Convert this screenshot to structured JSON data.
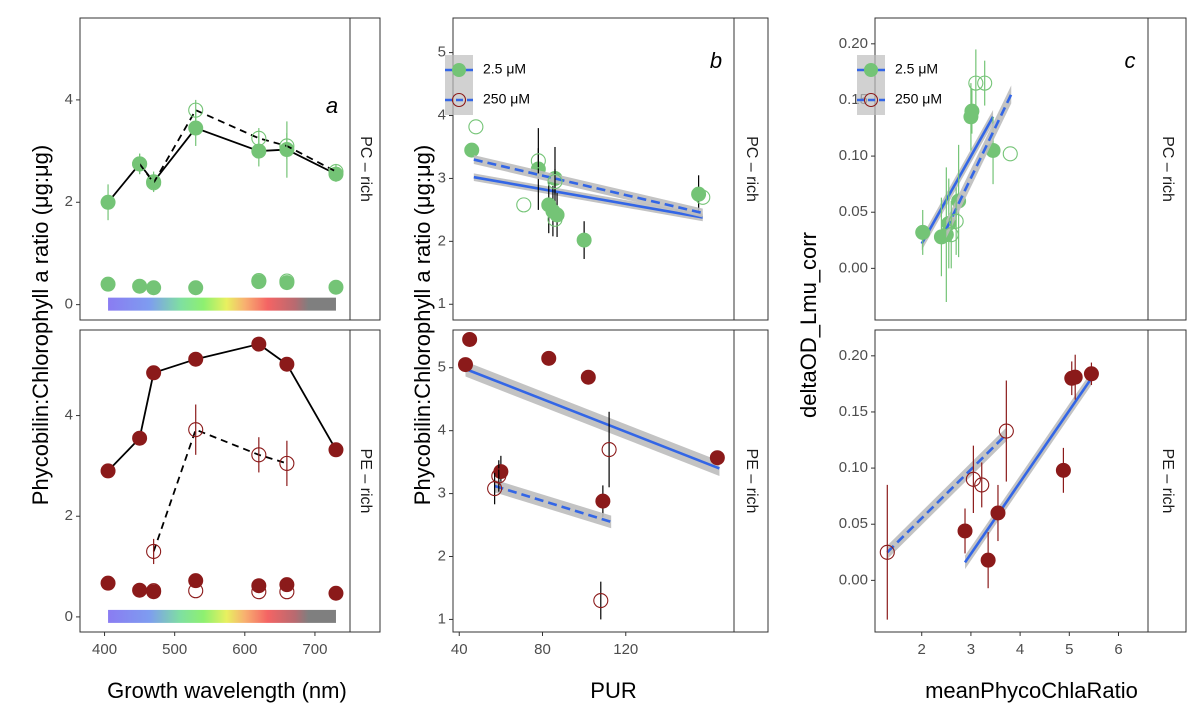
{
  "colors": {
    "pc": "#74c476",
    "pe": "#8b1a1a",
    "fit": "#3366e6",
    "ribbon": "#bdbdbd",
    "frame": "#333333",
    "grid": "#ffffff"
  },
  "legend": {
    "items": [
      {
        "label": "2.5 μM",
        "line": "solid",
        "marker": "filled"
      },
      {
        "label": "250 μM",
        "line": "dashed",
        "marker": "open"
      }
    ]
  },
  "chart_data": [
    {
      "id": "a",
      "type": "line",
      "panel_letter": "a",
      "xlabel": "Growth wavelength (nm)",
      "ylabel": "Phycobilin:Chlorophyll a ratio (μg:μg)",
      "xlim": [
        365,
        750
      ],
      "x_ticks": [
        "400",
        "500",
        "600",
        "700"
      ],
      "x_tick_values": [
        400,
        500,
        600,
        700
      ],
      "facets": [
        {
          "strip": "PC – rich",
          "ylim": [
            -0.3,
            5.6
          ],
          "y_ticks": [
            "0",
            "2",
            "4"
          ],
          "y_tick_values": [
            0,
            2,
            4
          ],
          "spectrum_bar": true,
          "series": [
            {
              "name": "2.5 μM",
              "line": "solid",
              "marker": "filled",
              "color": "pc",
              "x": [
                405,
                450,
                470,
                530,
                620,
                660,
                730
              ],
              "y": [
                2.0,
                2.75,
                2.4,
                3.45,
                3.0,
                3.03,
                2.55
              ],
              "err": [
                0.35,
                0.2,
                0.2,
                0.35,
                0.3,
                0.55,
                0.15
              ]
            },
            {
              "name": "250 μM",
              "line": "dashed",
              "marker": "open",
              "color": "pc",
              "x": [
                450,
                470,
                530,
                620,
                660,
                730
              ],
              "y": [
                2.75,
                2.38,
                3.8,
                3.25,
                3.1,
                2.6
              ],
              "err": [
                0.2,
                0.15,
                0.2,
                0.2,
                0.25,
                0.15
              ]
            },
            {
              "name": "2.5 μM",
              "line": "none",
              "marker": "filled",
              "color": "pc",
              "x": [
                405,
                450,
                470,
                530,
                620,
                660,
                730
              ],
              "y": [
                0.4,
                0.36,
                0.33,
                0.33,
                0.45,
                0.43,
                0.34
              ]
            },
            {
              "name": "250 μM",
              "line": "none",
              "marker": "open",
              "color": "pc",
              "x": [
                620,
                660
              ],
              "y": [
                0.47,
                0.46
              ]
            }
          ]
        },
        {
          "strip": "PE – rich",
          "ylim": [
            -0.3,
            5.7
          ],
          "y_ticks": [
            "0",
            "2",
            "4"
          ],
          "y_tick_values": [
            0,
            2,
            4
          ],
          "spectrum_bar": true,
          "series": [
            {
              "name": "2.5 μM",
              "line": "solid",
              "marker": "filled",
              "color": "pe",
              "x": [
                405,
                450,
                470,
                530,
                620,
                660,
                730
              ],
              "y": [
                2.9,
                3.55,
                4.85,
                5.12,
                5.42,
                5.02,
                3.32
              ],
              "err": [
                0.1,
                0.1,
                0.1,
                0.1,
                0.1,
                0.1,
                0.1
              ]
            },
            {
              "name": "250 μM",
              "line": "dashed",
              "marker": "open",
              "color": "pe",
              "x": [
                470,
                530,
                620,
                660
              ],
              "y": [
                1.3,
                3.72,
                3.22,
                3.05
              ],
              "err": [
                0.25,
                0.5,
                0.35,
                0.45
              ]
            },
            {
              "name": "2.5 μM",
              "line": "none",
              "marker": "filled",
              "color": "pe",
              "x": [
                405,
                450,
                470,
                530,
                620,
                660,
                730
              ],
              "y": [
                0.67,
                0.53,
                0.5,
                0.72,
                0.62,
                0.64,
                0.47
              ]
            },
            {
              "name": "250 μM",
              "line": "none",
              "marker": "open",
              "color": "pe",
              "x": [
                470,
                530,
                620,
                660
              ],
              "y": [
                0.52,
                0.52,
                0.5,
                0.5
              ]
            }
          ]
        }
      ]
    },
    {
      "id": "b",
      "type": "scatter",
      "panel_letter": "b",
      "xlabel": "PUR",
      "ylabel": "Phycobilin:Chlorophyll a ratio (μg:μg)",
      "xlim": [
        37,
        172
      ],
      "x_ticks": [
        "40",
        "80",
        "120"
      ],
      "x_tick_values": [
        40,
        80,
        120
      ],
      "facets": [
        {
          "strip": "PC – rich",
          "ylim": [
            0.75,
            5.55
          ],
          "y_ticks": [
            "1",
            "2",
            "3",
            "4",
            "5"
          ],
          "y_tick_values": [
            1,
            2,
            3,
            4,
            5
          ],
          "series": [
            {
              "name": "2.5 μM",
              "marker": "filled",
              "color": "pc",
              "x": [
                46,
                78,
                83,
                86,
                85,
                87,
                100,
                155
              ],
              "y": [
                3.45,
                3.15,
                2.58,
                3.0,
                2.48,
                2.42,
                2.02,
                2.75
              ],
              "err": [
                0,
                0.65,
                0.45,
                0.5,
                0.4,
                0.35,
                0.3,
                0.3
              ],
              "fit": {
                "x": [
                  47,
                  157
                ],
                "y": [
                  3.02,
                  2.38
                ],
                "band": 0.06
              }
            },
            {
              "name": "250 μM",
              "marker": "open",
              "color": "pc",
              "x": [
                48,
                71,
                78,
                86,
                86,
                157
              ],
              "y": [
                3.82,
                2.58,
                3.28,
                2.35,
                2.95,
                2.7
              ],
              "err": [
                0,
                0,
                0.2,
                0,
                0.2,
                0
              ],
              "fit": {
                "x": [
                  47,
                  157
                ],
                "y": [
                  3.3,
                  2.45
                ],
                "band": 0.07
              }
            }
          ]
        },
        {
          "strip": "PE – rich",
          "ylim": [
            0.8,
            5.6
          ],
          "y_ticks": [
            "1",
            "2",
            "3",
            "4",
            "5"
          ],
          "y_tick_values": [
            1,
            2,
            3,
            4,
            5
          ],
          "series": [
            {
              "name": "2.5 μM",
              "marker": "filled",
              "color": "pe",
              "x": [
                43,
                45,
                60,
                83,
                102,
                109,
                164
              ],
              "y": [
                5.05,
                5.45,
                3.35,
                5.15,
                4.85,
                2.88,
                3.57
              ],
              "err": [
                0,
                0,
                0.25,
                0,
                0,
                0.25,
                0
              ],
              "fit": {
                "x": [
                  43,
                  165
                ],
                "y": [
                  4.98,
                  3.4
                ],
                "band": 0.12
              }
            },
            {
              "name": "250 μM",
              "marker": "open",
              "color": "pe",
              "x": [
                57,
                59,
                108,
                112
              ],
              "y": [
                3.08,
                3.28,
                1.3,
                3.7
              ],
              "err": [
                0.25,
                0.25,
                0.3,
                0.6
              ],
              "fit": {
                "x": [
                  57,
                  113
                ],
                "y": [
                  3.12,
                  2.55
                ],
                "band": 0.1
              }
            }
          ]
        }
      ]
    },
    {
      "id": "c",
      "type": "scatter",
      "panel_letter": "c",
      "xlabel": "meanPhycoChlaRatio",
      "ylabel": "deltaOD_Lmu_corr",
      "xlim": [
        1.05,
        6.6
      ],
      "x_ticks": [
        "2",
        "3",
        "4",
        "5",
        "6"
      ],
      "x_tick_values": [
        2,
        3,
        4,
        5,
        6
      ],
      "facets": [
        {
          "strip": "PC – rich",
          "ylim": [
            -0.046,
            0.223
          ],
          "y_ticks": [
            "0.00",
            "0.05",
            "0.10",
            "0.15",
            "0.20"
          ],
          "y_tick_values": [
            0,
            0.05,
            0.1,
            0.15,
            0.2
          ],
          "series": [
            {
              "name": "2.5 μM",
              "marker": "filled",
              "color": "pc",
              "x": [
                2.02,
                2.4,
                2.5,
                2.55,
                2.75,
                3.0,
                3.02,
                3.45
              ],
              "y": [
                0.032,
                0.028,
                0.03,
                0.04,
                0.06,
                0.135,
                0.14,
                0.105
              ],
              "err": [
                0.02,
                0.035,
                0.06,
                0.04,
                0.05,
                0.03,
                0.02,
                0.03
              ],
              "fit": {
                "x": [
                  2.0,
                  3.45
                ],
                "y": [
                  0.022,
                  0.135
                ],
                "band": 0.006
              }
            },
            {
              "name": "250 μM",
              "marker": "open",
              "color": "pc",
              "x": [
                2.6,
                2.7,
                3.1,
                3.28,
                3.8
              ],
              "y": [
                0.03,
                0.042,
                0.165,
                0.165,
                0.102
              ],
              "err": [
                0.03,
                0.03,
                0.03,
                0.02,
                0.0
              ],
              "fit": {
                "x": [
                  2.5,
                  3.82
                ],
                "y": [
                  0.035,
                  0.155
                ],
                "band": 0.008
              }
            }
          ]
        },
        {
          "strip": "PE – rich",
          "ylim": [
            -0.046,
            0.223
          ],
          "y_ticks": [
            "0.00",
            "0.05",
            "0.10",
            "0.15",
            "0.20"
          ],
          "y_tick_values": [
            0,
            0.05,
            0.1,
            0.15,
            0.2
          ],
          "series": [
            {
              "name": "2.5 μM",
              "marker": "filled",
              "color": "pe",
              "x": [
                2.88,
                3.35,
                3.55,
                4.88,
                5.05,
                5.12,
                5.45
              ],
              "y": [
                0.044,
                0.018,
                0.06,
                0.098,
                0.18,
                0.181,
                0.184
              ],
              "err": [
                0.02,
                0.025,
                0.025,
                0.02,
                0.015,
                0.02,
                0.01
              ],
              "fit": {
                "x": [
                  2.88,
                  5.45
                ],
                "y": [
                  0.016,
                  0.18
                ],
                "band": 0.006
              }
            },
            {
              "name": "250 μM",
              "marker": "open",
              "color": "pe",
              "x": [
                1.3,
                3.05,
                3.22,
                3.72
              ],
              "y": [
                0.025,
                0.09,
                0.085,
                0.133
              ],
              "err": [
                0.06,
                0.03,
                0.02,
                0.045
              ],
              "fit": {
                "x": [
                  1.3,
                  3.72
                ],
                "y": [
                  0.025,
                  0.13
                ],
                "band": 0.006
              }
            }
          ]
        }
      ]
    }
  ]
}
